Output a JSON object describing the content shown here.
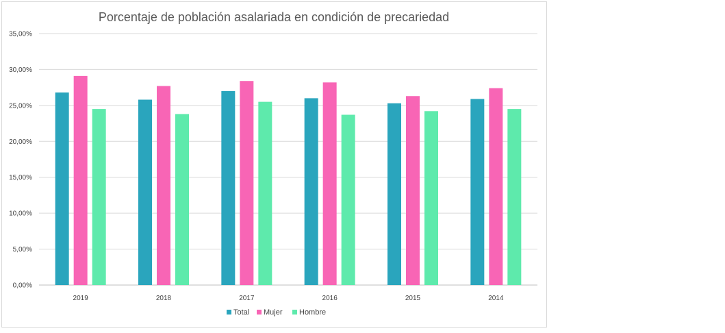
{
  "chart_data": {
    "type": "bar",
    "title": "Porcentaje de población asalariada en condición de precariedad",
    "categories": [
      "2019",
      "2018",
      "2017",
      "2016",
      "2015",
      "2014"
    ],
    "series": [
      {
        "name": "Total",
        "color": "#2aa5bd",
        "values": [
          26.8,
          25.8,
          27.0,
          26.0,
          25.3,
          25.9
        ]
      },
      {
        "name": "Mujer",
        "color": "#f865b5",
        "values": [
          29.1,
          27.7,
          28.4,
          28.2,
          26.3,
          27.4
        ]
      },
      {
        "name": "Hombre",
        "color": "#5eeaac",
        "values": [
          24.5,
          23.8,
          25.5,
          23.7,
          24.2,
          24.5
        ]
      }
    ],
    "ylim": [
      0,
      35
    ],
    "yticks": [
      "0,00%",
      "5,00%",
      "10,00%",
      "15,00%",
      "20,00%",
      "25,00%",
      "30,00%",
      "35,00%"
    ],
    "grid": true,
    "legend_position": "bottom"
  }
}
